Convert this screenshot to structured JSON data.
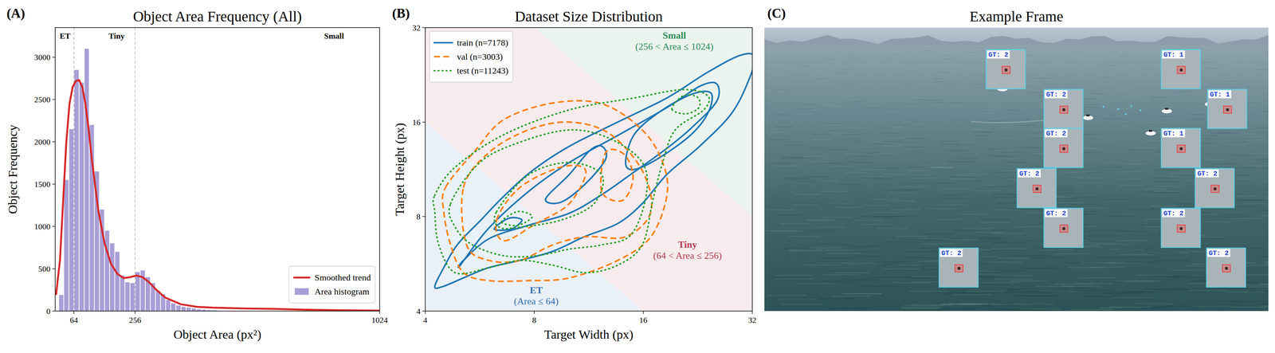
{
  "chart_data": [
    {
      "type": "histogram",
      "panel_label": "(A)",
      "title": "Object Area Frequency (All)",
      "x_label": "Object Area (px²)",
      "y_label": "Object Frequency",
      "xlim": [
        5,
        1024
      ],
      "ylim": [
        0,
        3350
      ],
      "xticks": [
        64,
        256,
        1024
      ],
      "yticks": [
        0,
        500,
        1000,
        1500,
        2000,
        2500,
        3000
      ],
      "grid": false,
      "legend": "lower right",
      "thresholds": [
        64,
        256
      ],
      "annotations": [
        {
          "text": "ET",
          "x": 36
        },
        {
          "text": "Tiny",
          "x": 198
        },
        {
          "text": "Small",
          "x": 881
        }
      ],
      "series": [
        {
          "name": "Smoothed trend",
          "type": "line",
          "color": "#d62728",
          "line_style": "solid",
          "x": [
            8,
            20,
            30,
            40,
            50,
            60,
            70,
            80,
            90,
            100,
            110,
            120,
            140,
            160,
            180,
            200,
            220,
            240,
            260,
            280,
            300,
            320,
            350,
            400,
            450,
            500,
            600,
            700,
            800,
            900,
            1024
          ],
          "values": [
            200,
            600,
            1300,
            2000,
            2450,
            2650,
            2720,
            2730,
            2650,
            2450,
            2150,
            1800,
            1200,
            800,
            560,
            440,
            390,
            400,
            420,
            400,
            340,
            260,
            160,
            80,
            50,
            40,
            30,
            25,
            15,
            10,
            5
          ]
        },
        {
          "name": "Area histogram",
          "type": "bar",
          "color": "#a99fd6",
          "bins": [
            16,
            32,
            48,
            64,
            80,
            96,
            112,
            128,
            144,
            160,
            176,
            192,
            208,
            224,
            240,
            256,
            272,
            288,
            304,
            320,
            336,
            352,
            368,
            384,
            400,
            416,
            432,
            448,
            464,
            480,
            496,
            512
          ],
          "values": [
            190,
            1550,
            2150,
            2850,
            2700,
            3100,
            2200,
            1650,
            1200,
            950,
            800,
            700,
            420,
            340,
            330,
            460,
            480,
            400,
            330,
            240,
            200,
            130,
            90,
            65,
            50,
            40,
            30,
            20,
            15,
            10,
            8
          ]
        }
      ]
    },
    {
      "type": "contour",
      "panel_label": "(B)",
      "title": "Dataset Size Distribution",
      "x_label": "Target Width (px)",
      "y_label": "Target Height (px)",
      "log": true,
      "xlim": [
        4,
        32
      ],
      "ylim": [
        4,
        32
      ],
      "xticks": [
        4,
        8,
        16,
        32
      ],
      "yticks": [
        4,
        8,
        16,
        32
      ],
      "grid": false,
      "legend": "upper left",
      "regions": [
        {
          "name": "ET",
          "label": "(Area ≤ 64)",
          "max_area": 64,
          "color": "#2f6db5",
          "label_x": 8.1,
          "label_y": 4.55
        },
        {
          "name": "Tiny",
          "label": "(64 < Area ≤ 256)",
          "min_area": 64,
          "max_area": 256,
          "color": "#b23a4e",
          "label_x": 21.2,
          "label_y": 6.36
        },
        {
          "name": "Small",
          "label": "(256 < Area ≤ 1024)",
          "min_area": 256,
          "max_area": 1024,
          "color": "#2e8b57",
          "label_x": 19.5,
          "label_y": 29.5
        }
      ],
      "series": [
        {
          "name": "train (n=7178)",
          "color": "#1f77b4",
          "line_style": "solid",
          "contours": [
            {
              "x": [
                4.25,
                4.5,
                4.9,
                5.7,
                6.6,
                7.9,
                10,
                13.6,
                18.6,
                24,
                29.6,
                32.5,
                31.2,
                28,
                22.9,
                18.6,
                15.9,
                13.6,
                11,
                9,
                7.3,
                6,
                5.1,
                4.5
              ],
              "y": [
                4.78,
                5.5,
                6.5,
                7.8,
                9.3,
                11.2,
                13.4,
                16,
                19.1,
                23,
                26.1,
                25.8,
                21.6,
                17,
                13.4,
                10.9,
                8.8,
                7.6,
                6.9,
                6.2,
                5.8,
                5.5,
                5.1,
                4.8
              ]
            },
            {
              "x": [
                5.0,
                5.96,
                7.7,
                10,
                13.6,
                18.6,
                22.9,
                25.5,
                25.5,
                21.7,
                18.6,
                15.1,
                12.3,
                10,
                7.7,
                6,
                5.1
              ],
              "y": [
                5.6,
                7.3,
                9.6,
                11.9,
                14.5,
                17.8,
                20.8,
                21.2,
                18.6,
                15.3,
                13.2,
                11.1,
                9.4,
                8.2,
                7.5,
                6.8,
                5.8
              ]
            },
            {
              "x": [
                8.6,
                10,
                11.4,
                12.3,
                12.6,
                11.1,
                9.5
              ],
              "y": [
                9.1,
                10.9,
                13,
                13.4,
                12.2,
                10.2,
                8.9
              ]
            },
            {
              "x": [
                14.3,
                15.1,
                17.7,
                21.7,
                24.6,
                24.2,
                21.7,
                17.7,
                15.1
              ],
              "y": [
                11.9,
                14.6,
                17.2,
                19.6,
                19.8,
                17.2,
                14.6,
                12.3,
                11.3
              ]
            },
            {
              "x": [
                6.2,
                6.8,
                7.4,
                6.9
              ],
              "y": [
                7.3,
                7.9,
                7.8,
                7.3
              ]
            }
          ]
        },
        {
          "name": "val (n=3003)",
          "color": "#ff7f0e",
          "line_style": "dashed",
          "contours": [
            {
              "x": [
                4.55,
                5.5,
                6.6,
                9,
                12.3,
                15.9,
                18.1,
                18.6,
                16.8,
                13.6,
                10,
                7.7,
                6,
                5.1,
                4.7,
                4.5
              ],
              "y": [
                9.9,
                13,
                16.3,
                18.4,
                18.3,
                15.1,
                11.9,
                9.35,
                6.9,
                5.8,
                5.1,
                5.0,
                5.0,
                5.3,
                6.5,
                8.3
              ]
            },
            {
              "x": [
                5.1,
                6,
                7.7,
                10,
                12.9,
                15.9,
                16.8,
                14.3,
                11.1,
                9,
                7.3,
                6,
                5.2
              ],
              "y": [
                9.9,
                12.8,
                15.1,
                16,
                14.7,
                11.2,
                8.3,
                6.9,
                6.9,
                6.5,
                5.8,
                5.8,
                6.5
              ]
            },
            {
              "x": [
                6.3,
                7.3,
                9.5,
                11.1,
                10,
                8.1,
                6.6
              ],
              "y": [
                7.8,
                9.9,
                11.5,
                11.2,
                8.8,
                7.6,
                6.7
              ]
            },
            {
              "x": [
                12.3,
                12.6,
                14.2,
                15.0,
                14.0
              ],
              "y": [
                9.6,
                12.8,
                12.6,
                10.6,
                9.0
              ]
            }
          ]
        },
        {
          "name": "test (n=11243)",
          "color": "#2ca02c",
          "line_style": "dotted",
          "contours": [
            {
              "x": [
                4.25,
                4.84,
                6.6,
                10,
                15.1,
                20.6,
                24.1,
                23.5,
                19.6,
                18.1,
                17,
                15.9,
                13.6,
                11.1,
                9,
                7.3,
                6,
                4.84,
                4.36,
                4.25
              ],
              "y": [
                9.35,
                11.5,
                14.6,
                17.5,
                19.1,
                20.3,
                19.4,
                17.5,
                15.1,
                11.9,
                9,
                6.5,
                5.6,
                5.3,
                5.6,
                5.8,
                5.5,
                5.3,
                6.5,
                8.3
              ]
            },
            {
              "x": [
                4.7,
                5.66,
                7.3,
                10,
                12.9,
                15.9,
                16.3,
                14.8,
                12.3,
                10,
                8.1,
                6.6,
                5.4,
                4.84
              ],
              "y": [
                8.8,
                11.9,
                13.8,
                15.1,
                14.2,
                11.9,
                9.35,
                7.0,
                6.5,
                6.3,
                6.0,
                6.0,
                6.5,
                7.4
              ]
            },
            {
              "x": [
                6.3,
                7.7,
                10,
                12.3,
                11.7,
                9.5,
                7.3,
                6.4
              ],
              "y": [
                8.3,
                10.85,
                11.9,
                10.85,
                8.8,
                7.8,
                7.4,
                7.4
              ]
            },
            {
              "x": [
                6.5,
                7.2,
                7.9,
                7.2
              ],
              "y": [
                7.7,
                8.3,
                8.0,
                7.5
              ]
            },
            {
              "x": [
                19.2,
                20.6,
                22.6,
                22.8,
                21
              ],
              "y": [
                17.6,
                19.4,
                19.2,
                17.8,
                17.0
              ]
            }
          ]
        }
      ]
    }
  ],
  "image_panel": {
    "panel_label": "(C)",
    "title": "Example Frame",
    "insets": [
      {
        "label": "GT: 2"
      },
      {
        "label": "GT: 1"
      },
      {
        "label": "GT: 2"
      },
      {
        "label": "GT: 1"
      },
      {
        "label": "GT: 2"
      },
      {
        "label": "GT: 1"
      },
      {
        "label": "GT: 2"
      },
      {
        "label": "GT: 2"
      },
      {
        "label": "GT: 2"
      },
      {
        "label": "GT: 2"
      },
      {
        "label": "GT: 2"
      },
      {
        "label": "GT: 2"
      }
    ]
  }
}
